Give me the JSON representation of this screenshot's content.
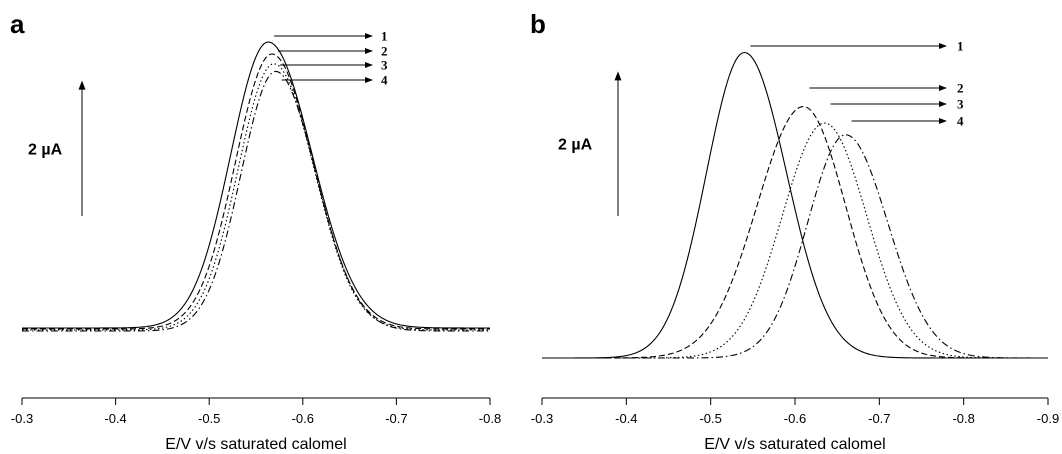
{
  "chart_data": [
    {
      "type": "line",
      "panel_label": "a",
      "xlabel": "E/V v/s saturated calomel",
      "scale_bar_label": "2 µA",
      "xlim": [
        -0.3,
        -0.8
      ],
      "x_ticks": [
        -0.3,
        -0.4,
        -0.5,
        -0.6,
        -0.7,
        -0.8
      ],
      "x_tick_labels": [
        "-0.3",
        "-0.4",
        "-0.5",
        "-0.6",
        "-0.7",
        "-0.8"
      ],
      "ylim": [
        0,
        7.5
      ],
      "scale_bar_value": 2,
      "series": [
        {
          "name": "1",
          "dash": "solid",
          "peak_x": -0.563,
          "peak_y": 6.5,
          "sigma_left": 0.04,
          "sigma_right": 0.047
        },
        {
          "name": "2",
          "dash": "dashed",
          "peak_x": -0.567,
          "peak_y": 6.25,
          "sigma_left": 0.039,
          "sigma_right": 0.044
        },
        {
          "name": "3",
          "dash": "dotted",
          "peak_x": -0.569,
          "peak_y": 6.05,
          "sigma_left": 0.038,
          "sigma_right": 0.043
        },
        {
          "name": "4",
          "dash": "dashdot",
          "peak_x": -0.571,
          "peak_y": 5.9,
          "sigma_left": 0.037,
          "sigma_right": 0.043
        }
      ]
    },
    {
      "type": "line",
      "panel_label": "b",
      "xlabel": "E/V  v/s saturated calomel",
      "scale_bar_label": "2 µA",
      "xlim": [
        -0.3,
        -0.9
      ],
      "x_ticks": [
        -0.3,
        -0.4,
        -0.5,
        -0.6,
        -0.7,
        -0.8,
        -0.9
      ],
      "x_tick_labels": [
        "-0.3",
        "-0.4",
        "-0.5",
        "-0.6",
        "-0.7",
        "-0.8",
        "-0.9"
      ],
      "ylim": [
        0,
        7.5
      ],
      "scale_bar_value": 2,
      "series": [
        {
          "name": "1",
          "dash": "solid",
          "peak_x": -0.54,
          "peak_y": 6.5,
          "sigma_left": 0.045,
          "sigma_right": 0.05
        },
        {
          "name": "2",
          "dash": "dashed",
          "peak_x": -0.61,
          "peak_y": 5.35,
          "sigma_left": 0.055,
          "sigma_right": 0.05
        },
        {
          "name": "3",
          "dash": "dotted",
          "peak_x": -0.635,
          "peak_y": 5.0,
          "sigma_left": 0.05,
          "sigma_right": 0.05
        },
        {
          "name": "4",
          "dash": "dashdot",
          "peak_x": -0.66,
          "peak_y": 4.75,
          "sigma_left": 0.045,
          "sigma_right": 0.05
        }
      ]
    }
  ]
}
